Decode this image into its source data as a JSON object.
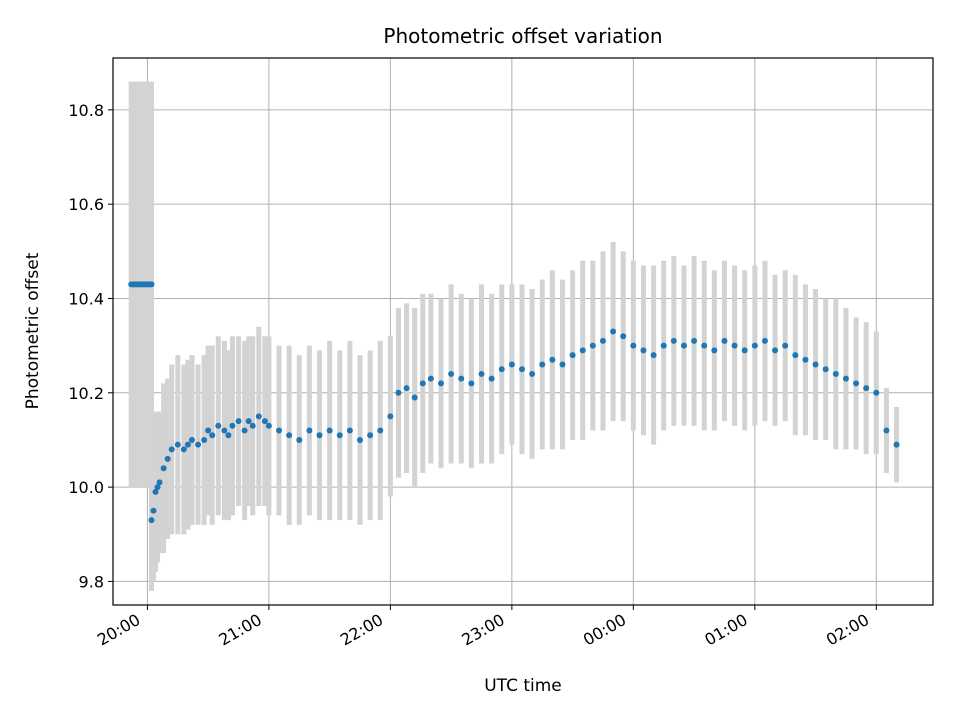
{
  "chart_data": {
    "type": "scatter",
    "title": "Photometric offset variation",
    "xlabel": "UTC time",
    "ylabel": "Photometric offset",
    "x_ticks": [
      "20:00",
      "21:00",
      "22:00",
      "23:00",
      "00:00",
      "01:00",
      "02:00"
    ],
    "y_ticks": [
      "9.8",
      "10.0",
      "10.2",
      "10.4",
      "10.6",
      "10.8"
    ],
    "xlim": [
      "19:43",
      "02:28"
    ],
    "ylim": [
      9.75,
      10.91
    ],
    "grid": true,
    "colors": {
      "points": "#1f77b4",
      "errorbars": "#d3d3d3",
      "grid": "#b0b0b0"
    },
    "series": [
      {
        "x": [
          "19:52",
          "19:53",
          "19:54",
          "19:55",
          "19:56",
          "19:57",
          "19:58",
          "19:59",
          "20:00",
          "20:01",
          "20:02"
        ],
        "y": [
          10.43,
          10.43,
          10.43,
          10.43,
          10.43,
          10.43,
          10.43,
          10.43,
          10.43,
          10.43,
          10.43
        ],
        "error": [
          0.43,
          0.43,
          0.43,
          0.43,
          0.43,
          0.43,
          0.43,
          0.43,
          0.43,
          0.43,
          0.43
        ]
      },
      {
        "x": [
          "20:02",
          "20:03",
          "20:04",
          "20:05",
          "20:06",
          "20:08",
          "20:10",
          "20:12",
          "20:15",
          "20:18",
          "20:20",
          "20:22",
          "20:25",
          "20:28",
          "20:30",
          "20:32",
          "20:35",
          "20:38",
          "20:40",
          "20:42",
          "20:45",
          "20:48",
          "20:50",
          "20:52",
          "20:55",
          "20:58",
          "21:00",
          "21:05",
          "21:10",
          "21:15",
          "21:20",
          "21:25",
          "21:30",
          "21:35",
          "21:40",
          "21:45",
          "21:50",
          "21:55",
          "22:00",
          "22:04",
          "22:08",
          "22:12",
          "22:16",
          "22:20",
          "22:25",
          "22:30",
          "22:35",
          "22:40",
          "22:45",
          "22:50",
          "22:55",
          "23:00",
          "23:05",
          "23:10",
          "23:15",
          "23:20",
          "23:25",
          "23:30",
          "23:35",
          "23:40",
          "23:45",
          "23:50",
          "23:55",
          "00:00",
          "00:05",
          "00:10",
          "00:15",
          "00:20",
          "00:25",
          "00:30",
          "00:35",
          "00:40",
          "00:45",
          "00:50",
          "00:55",
          "01:00",
          "01:05",
          "01:10",
          "01:15",
          "01:20",
          "01:25",
          "01:30",
          "01:35",
          "01:40",
          "01:45",
          "01:50",
          "01:55",
          "02:00",
          "02:05",
          "02:10"
        ],
        "y": [
          9.93,
          9.95,
          9.99,
          10.0,
          10.01,
          10.04,
          10.06,
          10.08,
          10.09,
          10.08,
          10.09,
          10.1,
          10.09,
          10.1,
          10.12,
          10.11,
          10.13,
          10.12,
          10.11,
          10.13,
          10.14,
          10.12,
          10.14,
          10.13,
          10.15,
          10.14,
          10.13,
          10.12,
          10.11,
          10.1,
          10.12,
          10.11,
          10.12,
          10.11,
          10.12,
          10.1,
          10.11,
          10.12,
          10.15,
          10.2,
          10.21,
          10.19,
          10.22,
          10.23,
          10.22,
          10.24,
          10.23,
          10.22,
          10.24,
          10.23,
          10.25,
          10.26,
          10.25,
          10.24,
          10.26,
          10.27,
          10.26,
          10.28,
          10.29,
          10.3,
          10.31,
          10.33,
          10.32,
          10.3,
          10.29,
          10.28,
          10.3,
          10.31,
          10.3,
          10.31,
          10.3,
          10.29,
          10.31,
          10.3,
          10.29,
          10.3,
          10.31,
          10.29,
          10.3,
          10.28,
          10.27,
          10.26,
          10.25,
          10.24,
          10.23,
          10.22,
          10.21,
          10.2,
          10.12,
          10.09
        ],
        "error": [
          0.15,
          0.15,
          0.17,
          0.16,
          0.15,
          0.18,
          0.17,
          0.18,
          0.19,
          0.18,
          0.18,
          0.18,
          0.17,
          0.18,
          0.18,
          0.19,
          0.19,
          0.19,
          0.18,
          0.19,
          0.18,
          0.19,
          0.18,
          0.19,
          0.19,
          0.18,
          0.19,
          0.18,
          0.19,
          0.18,
          0.18,
          0.18,
          0.19,
          0.18,
          0.19,
          0.18,
          0.18,
          0.19,
          0.17,
          0.18,
          0.18,
          0.19,
          0.19,
          0.18,
          0.18,
          0.19,
          0.18,
          0.18,
          0.19,
          0.18,
          0.18,
          0.17,
          0.18,
          0.18,
          0.18,
          0.19,
          0.18,
          0.18,
          0.19,
          0.18,
          0.19,
          0.19,
          0.18,
          0.18,
          0.18,
          0.19,
          0.18,
          0.18,
          0.17,
          0.18,
          0.18,
          0.17,
          0.17,
          0.17,
          0.17,
          0.17,
          0.17,
          0.16,
          0.16,
          0.17,
          0.16,
          0.16,
          0.15,
          0.16,
          0.15,
          0.14,
          0.14,
          0.13,
          0.09,
          0.08
        ]
      }
    ]
  }
}
